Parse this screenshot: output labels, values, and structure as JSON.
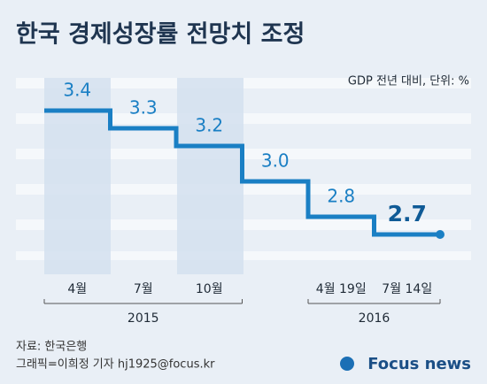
{
  "chart_data": {
    "type": "step",
    "title": "한국 경제성장률 전망치 조정",
    "subtitle": "GDP 전년 대비, 단위: %",
    "categories": [
      "4월",
      "7월",
      "10월",
      null,
      "4월 19일",
      "7월 14일"
    ],
    "years": [
      "2015",
      "2016"
    ],
    "values": [
      3.4,
      3.3,
      3.2,
      3.0,
      2.8,
      2.7
    ],
    "value_labels": [
      "3.4",
      "3.3",
      "3.2",
      "3.0",
      "2.8",
      "2.7"
    ],
    "color": "#1a7fc4",
    "ylim": [
      2.4,
      3.6
    ],
    "source": "자료: 한국은행",
    "credit": "그래픽=이희정 기자 hj1925@focus.kr",
    "logo": "Focus news"
  }
}
